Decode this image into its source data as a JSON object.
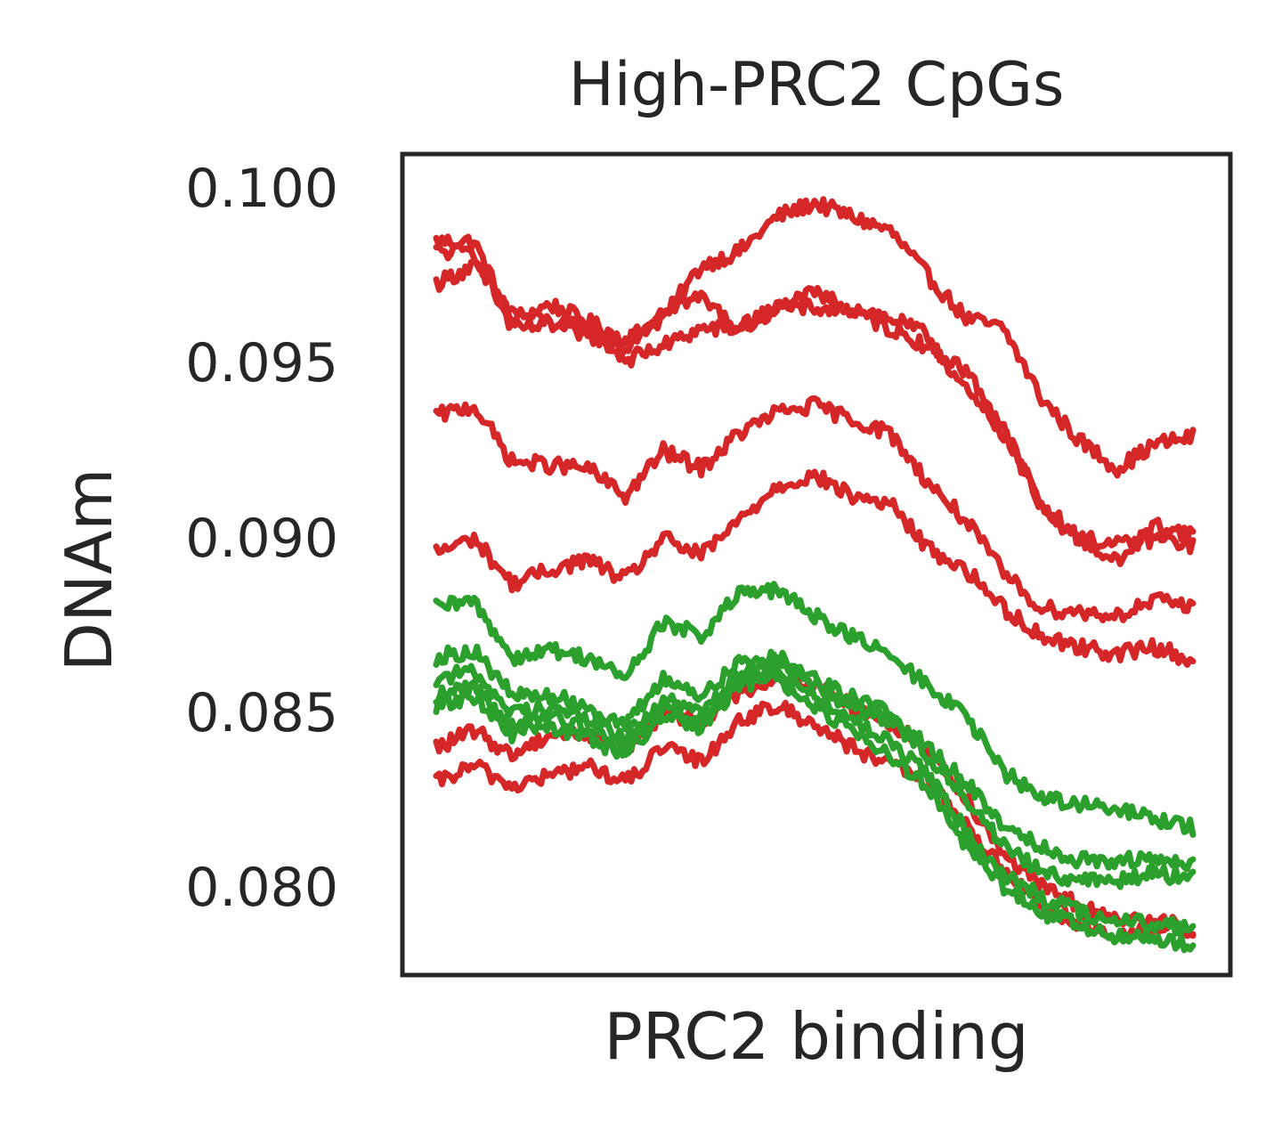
{
  "chart_data": {
    "type": "line",
    "title": "High-PRC2 CpGs",
    "xlabel": "PRC2 binding",
    "ylabel": "DNAm",
    "ylim": [
      0.0775,
      0.101
    ],
    "yticks": [
      "0.080",
      "0.085",
      "0.090",
      "0.095",
      "0.100"
    ],
    "xticks": [],
    "grid": false,
    "legend": "none",
    "colors": {
      "red": "#d62728",
      "green": "#2ca02c",
      "frame": "#262626"
    },
    "x": [
      0,
      5,
      10,
      15,
      20,
      25,
      30,
      35,
      40,
      45,
      50,
      55,
      60,
      65,
      70,
      75,
      80,
      85,
      90,
      95,
      100
    ],
    "series": [
      {
        "color": "red",
        "values": [
          0.0985,
          0.0985,
          0.0962,
          0.0967,
          0.0962,
          0.0957,
          0.0963,
          0.0978,
          0.0982,
          0.0992,
          0.0996,
          0.0992,
          0.0988,
          0.0975,
          0.0963,
          0.096,
          0.094,
          0.0928,
          0.092,
          0.0927,
          0.0929
        ]
      },
      {
        "color": "red",
        "values": [
          0.0973,
          0.0978,
          0.0965,
          0.0962,
          0.096,
          0.0951,
          0.0955,
          0.096,
          0.096,
          0.0966,
          0.097,
          0.0966,
          0.0963,
          0.0958,
          0.0942,
          0.093,
          0.091,
          0.09,
          0.0898,
          0.09,
          0.0898
        ]
      },
      {
        "color": "red",
        "values": [
          0.0982,
          0.0982,
          0.096,
          0.0961,
          0.0958,
          0.0955,
          0.0966,
          0.0969,
          0.096,
          0.0966,
          0.0966,
          0.0965,
          0.096,
          0.0955,
          0.0948,
          0.0932,
          0.0908,
          0.09,
          0.0893,
          0.0904,
          0.0901
        ]
      },
      {
        "color": "red",
        "values": [
          0.0935,
          0.0938,
          0.0922,
          0.0921,
          0.092,
          0.0912,
          0.0925,
          0.092,
          0.093,
          0.0936,
          0.0938,
          0.0934,
          0.093,
          0.0916,
          0.0905,
          0.089,
          0.088,
          0.0879,
          0.0878,
          0.0882,
          0.0881
        ]
      },
      {
        "color": "red",
        "values": [
          0.0896,
          0.09,
          0.0887,
          0.0891,
          0.0894,
          0.0888,
          0.09,
          0.0895,
          0.0905,
          0.0915,
          0.0918,
          0.0912,
          0.091,
          0.0897,
          0.0891,
          0.088,
          0.0872,
          0.0869,
          0.0867,
          0.0869,
          0.0865
        ]
      },
      {
        "color": "red",
        "values": [
          0.084,
          0.0845,
          0.0838,
          0.0844,
          0.0844,
          0.084,
          0.085,
          0.0848,
          0.0856,
          0.086,
          0.0858,
          0.0852,
          0.0847,
          0.084,
          0.0826,
          0.081,
          0.08,
          0.0795,
          0.079,
          0.0792,
          0.0787
        ]
      },
      {
        "color": "red",
        "values": [
          0.083,
          0.0835,
          0.0829,
          0.0832,
          0.0835,
          0.083,
          0.084,
          0.0836,
          0.0848,
          0.0852,
          0.0847,
          0.084,
          0.0835,
          0.083,
          0.0818,
          0.0805,
          0.0795,
          0.079,
          0.0785,
          0.0789,
          0.0788
        ]
      },
      {
        "color": "green",
        "values": [
          0.088,
          0.0882,
          0.0866,
          0.0868,
          0.0866,
          0.086,
          0.0876,
          0.0872,
          0.0884,
          0.0885,
          0.0878,
          0.0872,
          0.0866,
          0.0858,
          0.0849,
          0.0833,
          0.0826,
          0.0824,
          0.0822,
          0.082,
          0.0817
        ]
      },
      {
        "color": "green",
        "values": [
          0.0866,
          0.0868,
          0.0855,
          0.0855,
          0.0852,
          0.0846,
          0.086,
          0.0855,
          0.0864,
          0.0866,
          0.086,
          0.0855,
          0.085,
          0.084,
          0.083,
          0.0818,
          0.0812,
          0.0808,
          0.0808,
          0.0808,
          0.0806
        ]
      },
      {
        "color": "green",
        "values": [
          0.086,
          0.0862,
          0.085,
          0.0852,
          0.0848,
          0.0843,
          0.0854,
          0.085,
          0.0862,
          0.0866,
          0.0858,
          0.0852,
          0.0848,
          0.0838,
          0.0826,
          0.0812,
          0.0805,
          0.0802,
          0.0802,
          0.0804,
          0.0803
        ]
      },
      {
        "color": "green",
        "values": [
          0.0855,
          0.0858,
          0.0846,
          0.0849,
          0.0846,
          0.084,
          0.0852,
          0.0848,
          0.086,
          0.0862,
          0.0855,
          0.0848,
          0.0842,
          0.0832,
          0.0816,
          0.0804,
          0.0797,
          0.0793,
          0.079,
          0.079,
          0.0788
        ]
      },
      {
        "color": "green",
        "values": [
          0.0852,
          0.0855,
          0.0844,
          0.0846,
          0.0843,
          0.0838,
          0.085,
          0.0846,
          0.0858,
          0.086,
          0.0852,
          0.0845,
          0.0838,
          0.0828,
          0.0812,
          0.08,
          0.0793,
          0.0789,
          0.0786,
          0.0786,
          0.0783
        ]
      }
    ]
  }
}
